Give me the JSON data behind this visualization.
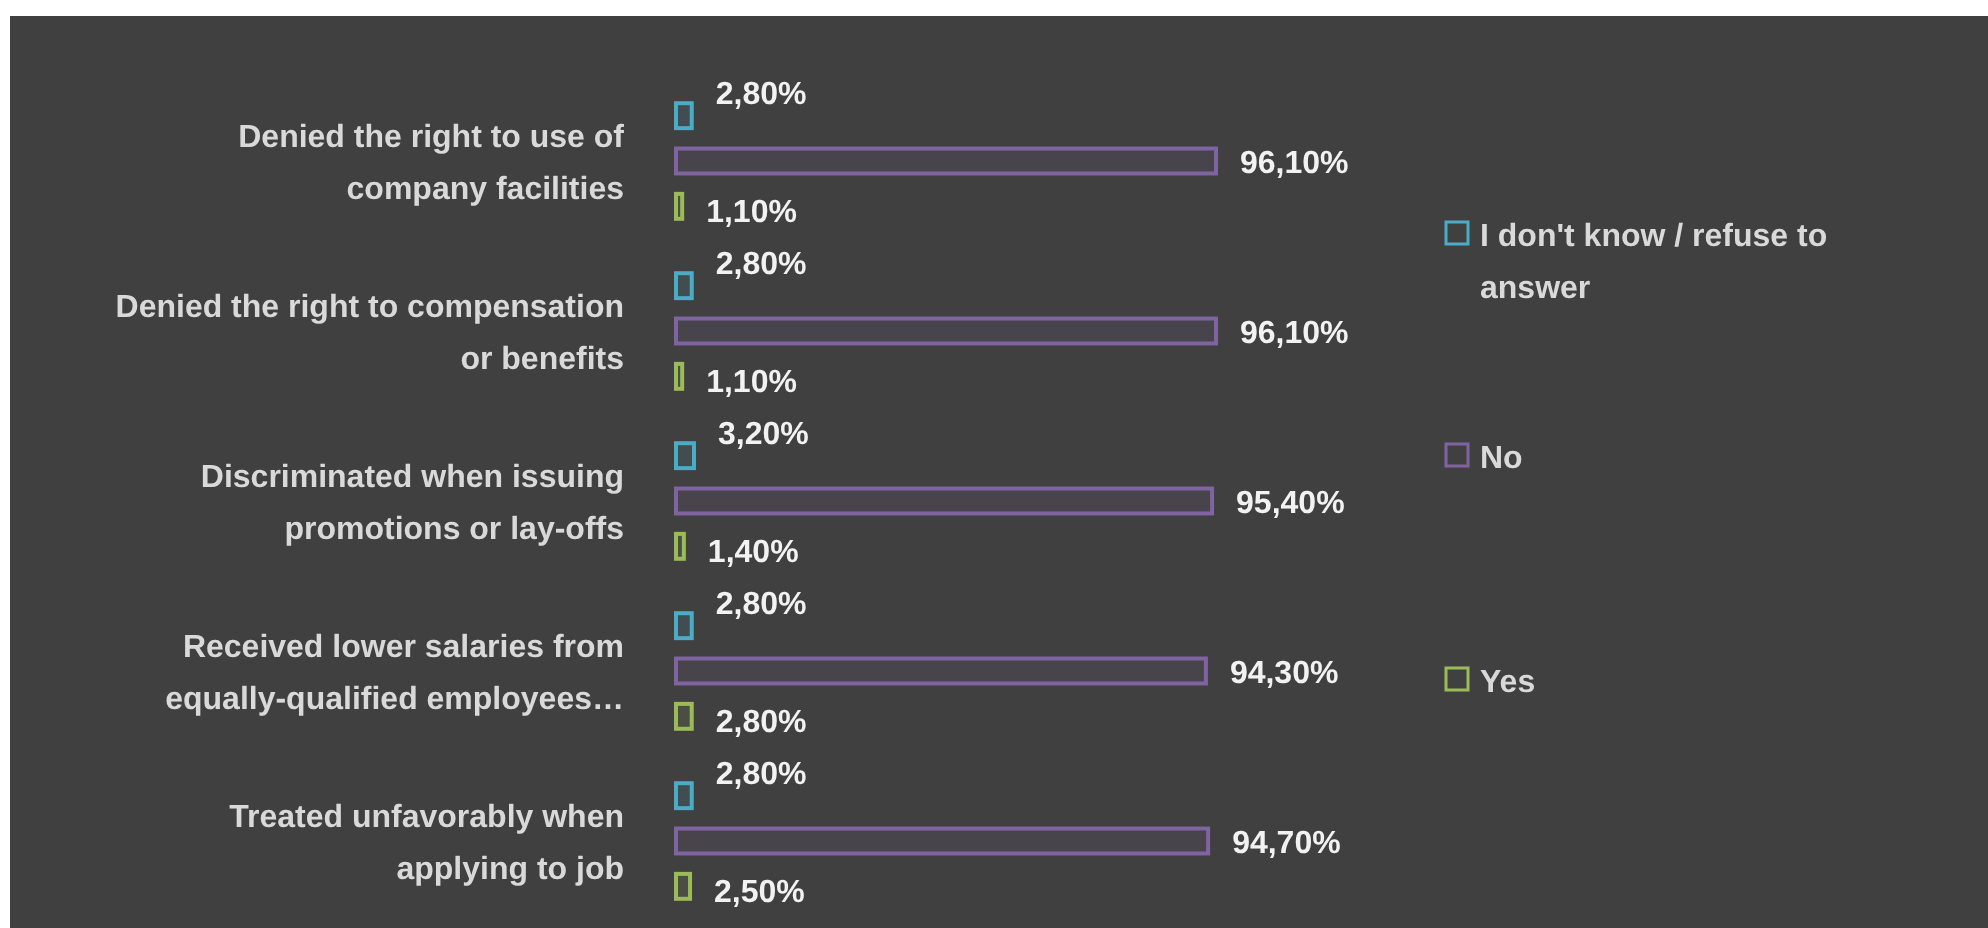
{
  "chart_data": {
    "type": "bar",
    "orientation": "horizontal",
    "legend": "right",
    "categories": [
      "Denied the right to use of company facilities",
      "Denied the right to compensation or benefits",
      "Discriminated when issuing promotions or lay-offs",
      "Received lower salaries from equally-qualified employees…",
      "Treated unfavorably when applying to job"
    ],
    "series": [
      {
        "name": "I don't know / refuse to answer",
        "color": "#4bacc6",
        "values": [
          2.8,
          2.8,
          3.2,
          2.8,
          2.8
        ],
        "value_labels": [
          "2,80%",
          "2,80%",
          "3,20%",
          "2,80%",
          "2,80%"
        ]
      },
      {
        "name": "No",
        "color": "#8064a2",
        "values": [
          96.1,
          96.1,
          95.4,
          94.3,
          94.7
        ],
        "value_labels": [
          "96,10%",
          "96,10%",
          "95,40%",
          "94,30%",
          "94,70%"
        ]
      },
      {
        "name": "Yes",
        "color": "#9bbb59",
        "values": [
          1.1,
          1.1,
          1.4,
          2.8,
          2.5
        ],
        "value_labels": [
          "1,10%",
          "1,10%",
          "1,40%",
          "2,80%",
          "2,50%"
        ]
      }
    ]
  }
}
